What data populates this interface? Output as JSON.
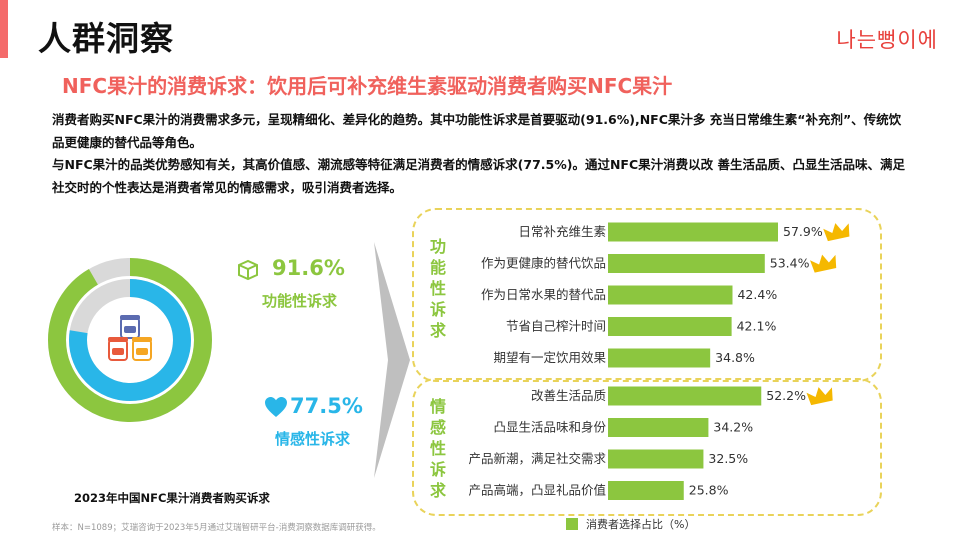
{
  "page": {
    "title": "人群洞察",
    "brand": "나는뻥이에",
    "subtitle": "NFC果汁的消费诉求：饮用后可补充维生素驱动消费者购买NFC果汁",
    "paragraph1": "消费者购买NFC果汁的消费需求多元，呈现精细化、差异化的趋势。其中功能性诉求是首要驱动(91.6%),NFC果汁多 充当日常维生素“补充剂”、传统饮品更健康的替代品等角色。",
    "paragraph2": "与NFC果汁的品类优势感知有关，其高价值感、潮流感等特征满足消费者的情感诉求(77.5%)。通过NFC果汁消费以改 善生活品质、凸显生活品味、满足社交时的个性表达是消费者常见的情感需求，吸引消费者选择。",
    "source": "样本：N=1089；艾瑞咨询于2023年5月通过艾瑞智研平台-消费洞察数据库调研获得。"
  },
  "colors": {
    "green": "#8cc63f",
    "blue": "#29b6e8",
    "gray": "#d9d9d9",
    "accent": "#f0615c",
    "crown": "#f5b800"
  },
  "icons": {
    "box": "box-icon",
    "heart": "heart-icon",
    "juice": "juice-jar-icon",
    "crown": "crown-icon"
  },
  "chart_data": [
    {
      "type": "pie",
      "title": "2023年中国NFC果汁消费者购买诉求",
      "series": [
        {
          "name": "功能性诉求",
          "value": 91.6,
          "label": "91.6%"
        },
        {
          "name": "情感性诉求",
          "value": 77.5,
          "label": "77.5%"
        }
      ]
    },
    {
      "type": "bar",
      "orientation": "horizontal",
      "legend": "消费者选择占比（%）",
      "legend_position": "bottom",
      "groups": [
        {
          "name": "功能性诉求",
          "categories": [
            "日常补充维生素",
            "作为更健康的替代饮品",
            "作为日常水果的替代品",
            "节省自己榨汁时间",
            "期望有一定饮用效果"
          ],
          "values": [
            57.9,
            53.4,
            42.4,
            42.1,
            34.8
          ],
          "labels": [
            "57.9%",
            "53.4%",
            "42.4%",
            "42.1%",
            "34.8%"
          ],
          "crowned": [
            true,
            true,
            false,
            false,
            false
          ]
        },
        {
          "name": "情感性诉求",
          "categories": [
            "改善生活品质",
            "凸显生活品味和身份",
            "产品新潮，满足社交需求",
            "产品高端，凸显礼品价值"
          ],
          "values": [
            52.2,
            34.2,
            32.5,
            25.8
          ],
          "labels": [
            "52.2%",
            "34.2%",
            "32.5%",
            "25.8%"
          ],
          "crowned": [
            true,
            false,
            false,
            false
          ]
        }
      ],
      "xlim": [
        0,
        57.9
      ]
    }
  ]
}
